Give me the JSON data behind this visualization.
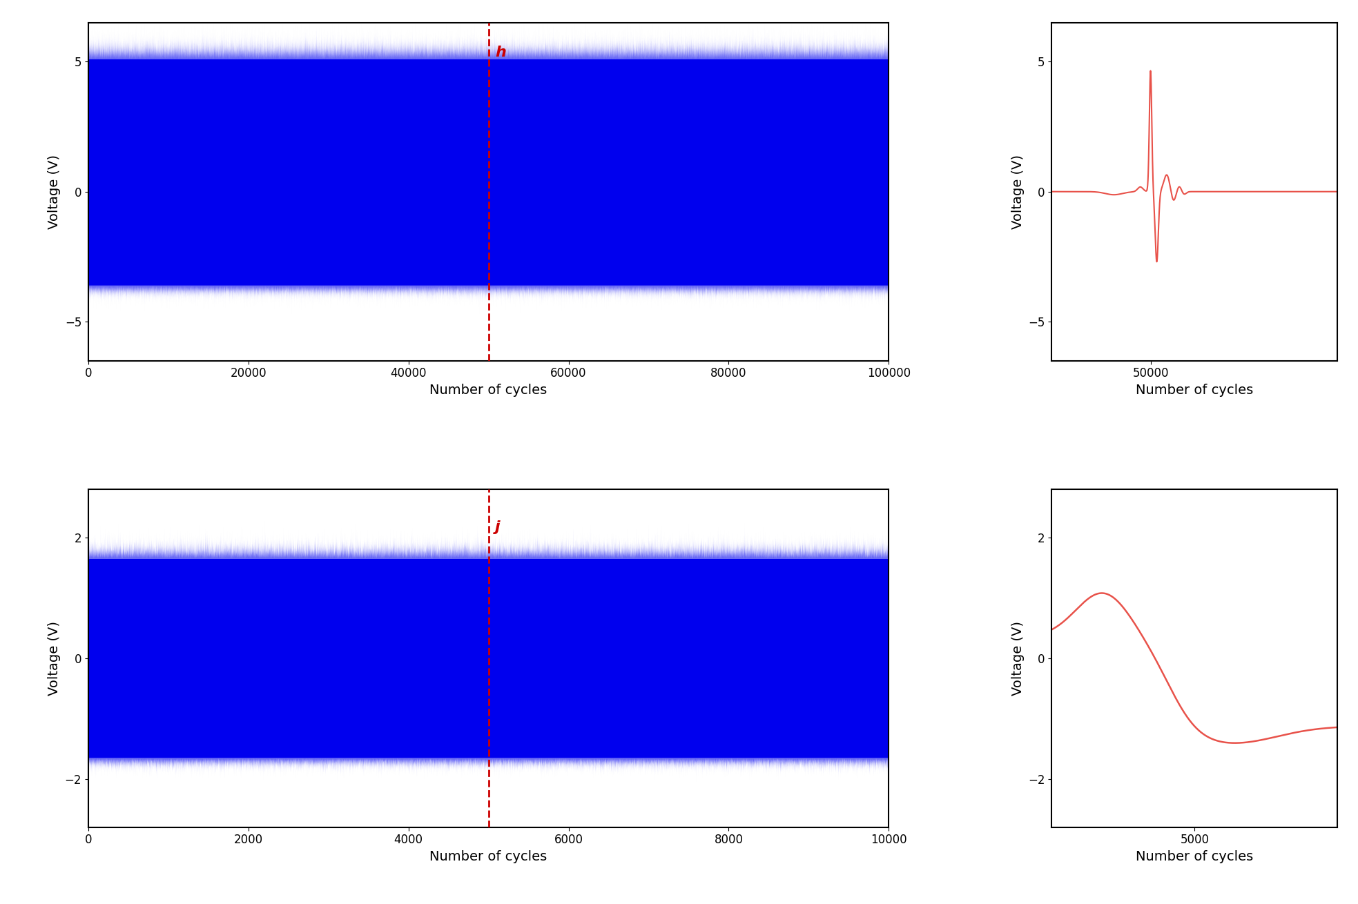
{
  "top_left": {
    "xlim": [
      0,
      100000
    ],
    "ylim": [
      -6.5,
      6.5
    ],
    "yticks": [
      -5,
      0,
      5
    ],
    "xticks": [
      0,
      20000,
      40000,
      60000,
      80000,
      100000
    ],
    "xlabel": "Number of cycles",
    "ylabel": "Voltage (V)",
    "label": "h",
    "dashed_x": 50000,
    "blue_ymin": -3.5,
    "blue_ymax": 5.0,
    "noise_amp": 0.25
  },
  "top_right": {
    "xlim": [
      42000,
      65000
    ],
    "ylim": [
      -6.5,
      6.5
    ],
    "yticks": [
      -5,
      0,
      5
    ],
    "xticks": [
      50000
    ],
    "xlabel": "Number of cycles",
    "ylabel": "Voltage (V)"
  },
  "bottom_left": {
    "xlim": [
      0,
      10000
    ],
    "ylim": [
      -2.8,
      2.8
    ],
    "yticks": [
      -2,
      0,
      2
    ],
    "xticks": [
      0,
      2000,
      4000,
      6000,
      8000,
      10000
    ],
    "xlabel": "Number of cycles",
    "ylabel": "Voltage (V)",
    "label": "j",
    "dashed_x": 5000,
    "blue_ymin": -1.6,
    "blue_ymax": 1.6,
    "noise_amp": 0.12
  },
  "bottom_right": {
    "xlim": [
      0,
      10000
    ],
    "ylim": [
      -2.8,
      2.8
    ],
    "yticks": [
      -2,
      0,
      2
    ],
    "xticks": [
      5000
    ],
    "xlabel": "Number of cycles",
    "ylabel": "Voltage (V)"
  },
  "blue_color": "#0000EE",
  "red_color": "#E8524A",
  "dashed_color": "#CC0000",
  "label_color": "#CC0000",
  "bg_color": "#FFFFFF",
  "font_size_label": 14,
  "font_size_tick": 12
}
